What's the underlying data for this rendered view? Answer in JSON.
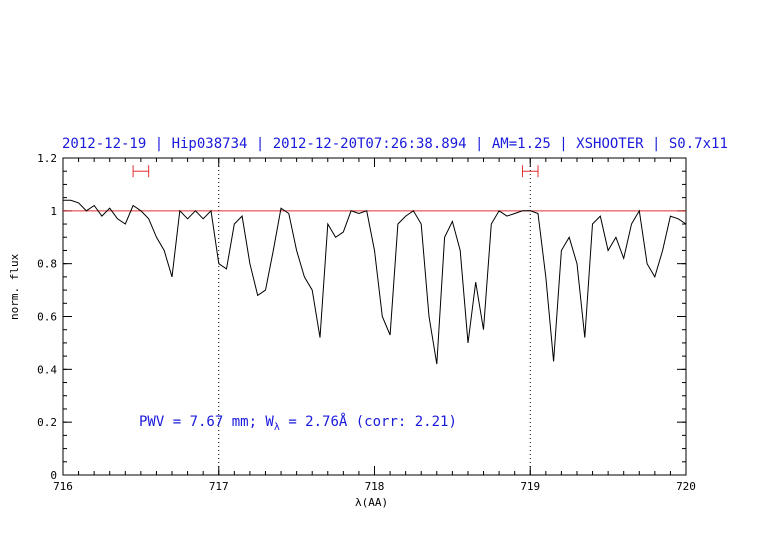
{
  "chart_data": {
    "type": "line",
    "title": "2012-12-19 | Hip038734 | 2012-12-20T07:26:38.894 | AM=1.25 | XSHOOTER | S0.7x11",
    "xlabel": "λ(AA)",
    "ylabel": "norm. flux",
    "xlim": [
      716,
      720
    ],
    "ylim": [
      0,
      1.2
    ],
    "x_ticks": [
      "716",
      "717",
      "718",
      "719",
      "720"
    ],
    "y_ticks": [
      "0",
      "0.2",
      "0.4",
      "0.6",
      "0.8",
      "1",
      "1.2"
    ],
    "reference_line": {
      "y": 1.0,
      "color": "#e03030"
    },
    "vertical_markers": [
      717.0,
      719.0
    ],
    "continuum_windows": [
      {
        "x0": 716.45,
        "x1": 716.55,
        "y": 1.15,
        "color": "#e03030"
      },
      {
        "x0": 718.95,
        "x1": 719.05,
        "y": 1.15,
        "color": "#e03030"
      }
    ],
    "annotation": {
      "pwv_label": "PWV = 7.67 mm; W",
      "sub": "λ",
      "rest": " = 2.76Å (corr: 2.21)"
    },
    "series": [
      {
        "color": "#000000",
        "x": [
          716.0,
          716.05,
          716.1,
          716.15,
          716.2,
          716.25,
          716.3,
          716.35,
          716.4,
          716.45,
          716.5,
          716.55,
          716.6,
          716.65,
          716.7,
          716.75,
          716.8,
          716.85,
          716.9,
          716.95,
          717.0,
          717.05,
          717.1,
          717.15,
          717.2,
          717.25,
          717.3,
          717.35,
          717.4,
          717.45,
          717.5,
          717.55,
          717.6,
          717.65,
          717.7,
          717.75,
          717.8,
          717.85,
          717.9,
          717.95,
          718.0,
          718.05,
          718.1,
          718.15,
          718.2,
          718.25,
          718.3,
          718.35,
          718.4,
          718.45,
          718.5,
          718.55,
          718.6,
          718.65,
          718.7,
          718.75,
          718.8,
          718.85,
          718.9,
          718.95,
          719.0,
          719.05,
          719.1,
          719.15,
          719.2,
          719.25,
          719.3,
          719.35,
          719.4,
          719.45,
          719.5,
          719.55,
          719.6,
          719.65,
          719.7,
          719.75,
          719.8,
          719.85,
          719.9,
          719.95,
          720.0
        ],
        "y": [
          1.04,
          1.04,
          1.03,
          1.0,
          1.02,
          0.98,
          1.01,
          0.97,
          0.95,
          1.02,
          1.0,
          0.97,
          0.9,
          0.85,
          0.75,
          1.0,
          0.97,
          1.0,
          0.97,
          1.0,
          0.8,
          0.78,
          0.95,
          0.98,
          0.8,
          0.68,
          0.7,
          0.85,
          1.01,
          0.99,
          0.85,
          0.75,
          0.7,
          0.52,
          0.95,
          0.9,
          0.92,
          1.0,
          0.99,
          1.0,
          0.85,
          0.6,
          0.53,
          0.95,
          0.98,
          1.0,
          0.95,
          0.6,
          0.42,
          0.9,
          0.96,
          0.85,
          0.5,
          0.73,
          0.55,
          0.95,
          1.0,
          0.98,
          0.99,
          1.0,
          1.0,
          0.99,
          0.75,
          0.43,
          0.85,
          0.9,
          0.8,
          0.52,
          0.95,
          0.98,
          0.85,
          0.9,
          0.82,
          0.95,
          1.0,
          0.8,
          0.75,
          0.85,
          0.98,
          0.97,
          0.95
        ]
      }
    ]
  }
}
